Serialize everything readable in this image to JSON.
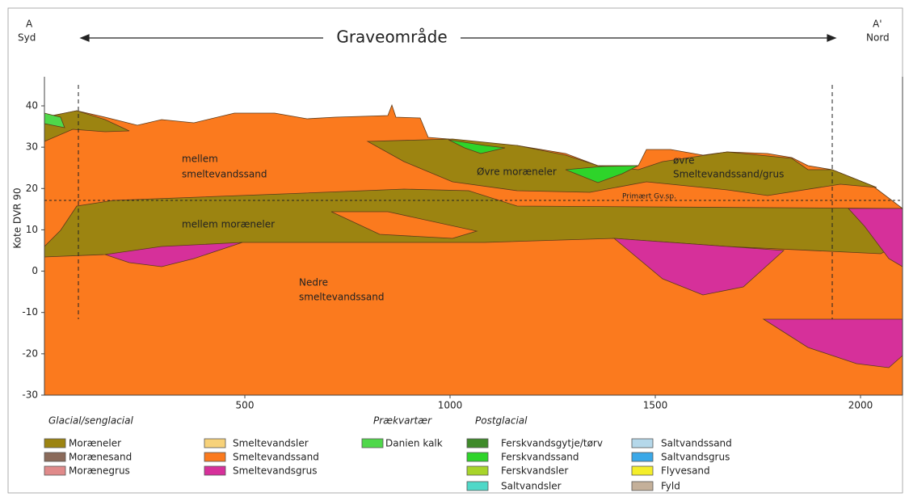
{
  "header": {
    "left_letter": "A",
    "left_label": "Syd",
    "right_letter": "A'",
    "right_label": "Nord",
    "title": "Graveområde"
  },
  "axis": {
    "ylabel": "Kote DVR 90",
    "yticks": [
      40,
      30,
      20,
      10,
      0,
      -10,
      -20,
      -30
    ],
    "xticks": [
      500,
      1000,
      1500,
      2000
    ]
  },
  "labels": [
    "mellem",
    "smeltevandssand",
    "Øvre moræneler",
    "øvre",
    "Smeltevandssand/grus",
    "Primært Gv.sp.",
    "mellem moræneler",
    "Nedre",
    "smeltevandssand"
  ],
  "legend": [
    {
      "title": "Glacial/senglacial",
      "items": [
        {
          "name": "Moræneler",
          "color": "#9c8411"
        },
        {
          "name": "Morænesand",
          "color": "#8a6a5a"
        },
        {
          "name": "Morænegrus",
          "color": "#e08a8a"
        }
      ]
    },
    {
      "items": [
        {
          "name": "Smeltevandsler",
          "color": "#f7d27a"
        },
        {
          "name": "Smeltevandssand",
          "color": "#fb7a1e"
        },
        {
          "name": "Smeltevandsgrus",
          "color": "#d6309a"
        }
      ]
    },
    {
      "title": "Prækvartær",
      "items": [
        {
          "name": "Danien kalk",
          "color": "#4fd84a"
        }
      ]
    },
    {
      "title": "Postglacial",
      "items": [
        {
          "name": "Ferskvandsgytje/tørv",
          "color": "#3f8a2a"
        },
        {
          "name": "Ferskvandssand",
          "color": "#2ed42a"
        },
        {
          "name": "Ferskvandsler",
          "color": "#a8d42a"
        },
        {
          "name": "Saltvandsler",
          "color": "#4fd8c8"
        }
      ]
    },
    {
      "items": [
        {
          "name": "Saltvandssand",
          "color": "#b5d8ea"
        },
        {
          "name": "Saltvandsgrus",
          "color": "#3aa8e8"
        },
        {
          "name": "Flyvesand",
          "color": "#f4ee2a"
        },
        {
          "name": "Fyld",
          "color": "#c4b09a"
        }
      ]
    }
  ]
}
